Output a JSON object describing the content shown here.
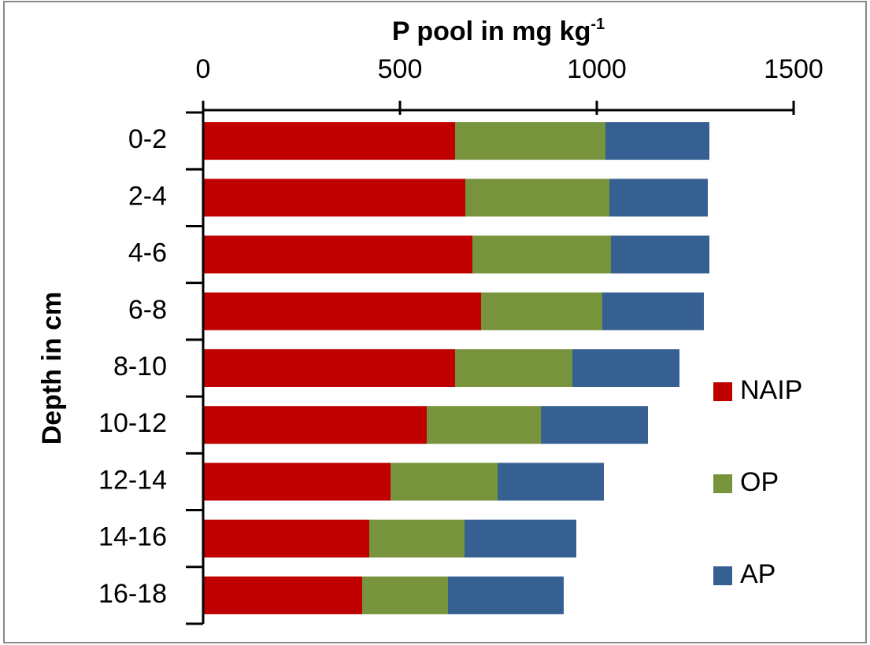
{
  "chart_data": {
    "type": "stacked-barh",
    "title": "P pool in mg kg",
    "title_superscript": "-1",
    "y_label": "Depth in cm",
    "categories": [
      "0-2",
      "2-4",
      "4-6",
      "6-8",
      "8-10",
      "10-12",
      "12-14",
      "14-16",
      "16-18"
    ],
    "series": [
      {
        "name": "NAIP",
        "color": "#c00000",
        "values": [
          640,
          666,
          684,
          706,
          640,
          568,
          476,
          422,
          404
        ]
      },
      {
        "name": "OP",
        "color": "#77933c",
        "values": [
          382,
          366,
          352,
          308,
          298,
          290,
          272,
          242,
          218
        ]
      },
      {
        "name": "AP",
        "color": "#376092",
        "values": [
          264,
          250,
          250,
          258,
          272,
          272,
          270,
          284,
          294
        ]
      }
    ],
    "xlim": [
      0,
      1500
    ],
    "xticks": [
      0,
      500,
      1000,
      1500
    ],
    "legend": "right"
  }
}
